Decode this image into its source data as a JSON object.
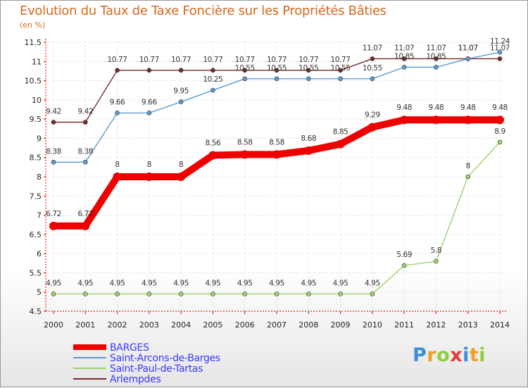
{
  "chart_data": {
    "type": "line",
    "title": "Evolution du Taux de Taxe Foncière sur les Propriétés Bâties",
    "ylabel": "(en %)",
    "xlabel": "",
    "x": [
      2000,
      2001,
      2002,
      2003,
      2004,
      2005,
      2006,
      2007,
      2008,
      2009,
      2010,
      2011,
      2012,
      2013,
      2014
    ],
    "ylim": [
      4.5,
      11.5
    ],
    "yticks": [
      4.5,
      5,
      5.5,
      6,
      6.5,
      7,
      7.5,
      8,
      8.5,
      9,
      9.5,
      10,
      10.5,
      11,
      11.5
    ],
    "legend_position": "bottom-left",
    "series": [
      {
        "name": "BARGES",
        "color": "#ee0000",
        "values": [
          6.72,
          6.72,
          8,
          8,
          8,
          8.56,
          8.58,
          8.58,
          8.68,
          8.85,
          9.29,
          9.48,
          9.48,
          9.48,
          9.48
        ]
      },
      {
        "name": "Saint-Arcons-de-Barges",
        "color": "#5b9bd5",
        "values": [
          8.38,
          8.38,
          9.66,
          9.66,
          9.95,
          10.25,
          10.55,
          10.55,
          10.55,
          10.55,
          10.55,
          10.85,
          10.85,
          11.07,
          11.24
        ]
      },
      {
        "name": "Saint-Paul-de-Tartas",
        "color": "#9ad46a",
        "values": [
          4.95,
          4.95,
          4.95,
          4.95,
          4.95,
          4.95,
          4.95,
          4.95,
          4.95,
          4.95,
          4.95,
          5.69,
          5.8,
          8,
          8.9
        ]
      },
      {
        "name": "Arlempdes",
        "color": "#7a2a2a",
        "values": [
          9.42,
          9.42,
          10.77,
          10.77,
          10.77,
          10.77,
          10.77,
          10.77,
          10.77,
          10.77,
          11.07,
          11.07,
          11.07,
          11.07,
          11.07
        ]
      }
    ]
  },
  "logo": {
    "letters": [
      "P",
      "r",
      "o",
      "x",
      "i",
      "t",
      "i"
    ]
  }
}
